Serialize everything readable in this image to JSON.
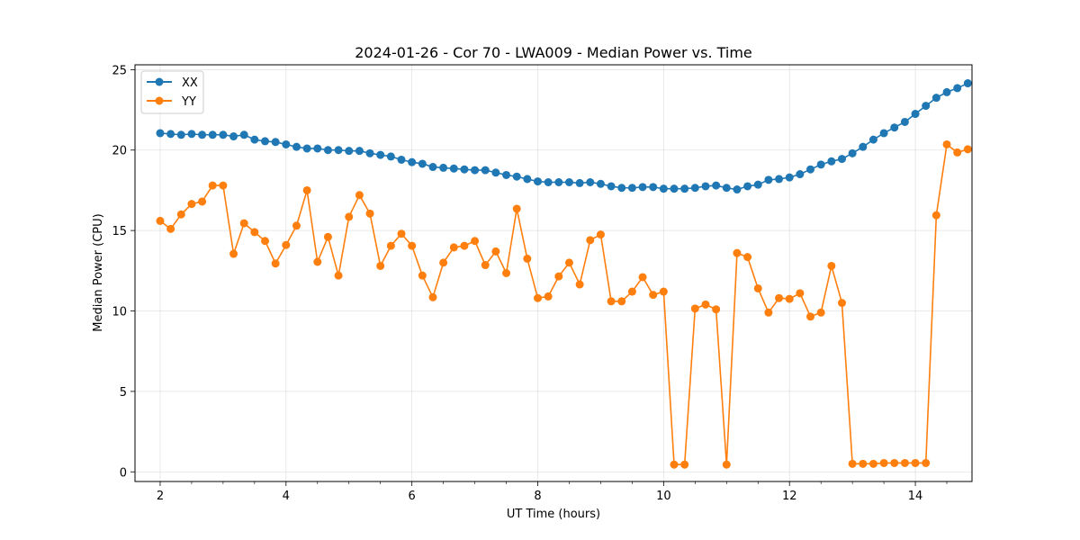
{
  "chart_data": {
    "type": "line",
    "title": "2024-01-26 - Cor 70 - LWA009 - Median Power vs. Time",
    "xlabel": "UT Time (hours)",
    "ylabel": "Median Power (CPU)",
    "xlim": [
      1.6,
      14.9
    ],
    "ylim": [
      -0.6,
      25.3
    ],
    "xticks": [
      2,
      4,
      6,
      8,
      10,
      12,
      14
    ],
    "yticks": [
      0,
      5,
      10,
      15,
      20,
      25
    ],
    "grid": true,
    "legend_position": "upper-left",
    "x": [
      2.0,
      2.1667,
      2.3333,
      2.5,
      2.6667,
      2.8333,
      3.0,
      3.1667,
      3.3333,
      3.5,
      3.6667,
      3.8333,
      4.0,
      4.1667,
      4.3333,
      4.5,
      4.6667,
      4.8333,
      5.0,
      5.1667,
      5.3333,
      5.5,
      5.6667,
      5.8333,
      6.0,
      6.1667,
      6.3333,
      6.5,
      6.6667,
      6.8333,
      7.0,
      7.1667,
      7.3333,
      7.5,
      7.6667,
      7.8333,
      8.0,
      8.1667,
      8.3333,
      8.5,
      8.6667,
      8.8333,
      9.0,
      9.1667,
      9.3333,
      9.5,
      9.6667,
      9.8333,
      10.0,
      10.1667,
      10.3333,
      10.5,
      10.6667,
      10.8333,
      11.0,
      11.1667,
      11.3333,
      11.5,
      11.6667,
      11.8333,
      12.0,
      12.1667,
      12.3333,
      12.5,
      12.6667,
      12.8333,
      13.0,
      13.1667,
      13.3333,
      13.5,
      13.6667,
      13.8333,
      14.0,
      14.1667,
      14.3333,
      14.5,
      14.6667,
      14.8333
    ],
    "series": [
      {
        "name": "XX",
        "color": "#1f77b4",
        "values": [
          21.05,
          21.0,
          20.95,
          21.0,
          20.95,
          20.95,
          20.95,
          20.85,
          20.95,
          20.65,
          20.55,
          20.5,
          20.35,
          20.2,
          20.1,
          20.1,
          20.0,
          20.0,
          19.95,
          19.95,
          19.8,
          19.7,
          19.6,
          19.4,
          19.25,
          19.15,
          18.95,
          18.9,
          18.85,
          18.8,
          18.75,
          18.75,
          18.6,
          18.45,
          18.35,
          18.2,
          18.05,
          18.0,
          18.0,
          18.0,
          17.95,
          18.0,
          17.9,
          17.75,
          17.65,
          17.65,
          17.7,
          17.7,
          17.6,
          17.6,
          17.6,
          17.65,
          17.75,
          17.8,
          17.65,
          17.55,
          17.75,
          17.85,
          18.15,
          18.2,
          18.3,
          18.5,
          18.8,
          19.1,
          19.3,
          19.45,
          19.8,
          20.2,
          20.65,
          21.05,
          21.4,
          21.75,
          22.25,
          22.75,
          23.25,
          23.6,
          23.85,
          24.15
        ]
      },
      {
        "name": "YY",
        "color": "#ff7f0e",
        "values": [
          15.6,
          15.1,
          16.0,
          16.65,
          16.8,
          17.8,
          17.8,
          13.55,
          15.45,
          14.9,
          14.35,
          12.95,
          14.1,
          15.3,
          17.5,
          13.05,
          14.6,
          12.2,
          15.85,
          17.2,
          16.05,
          12.8,
          14.05,
          14.8,
          14.05,
          12.2,
          10.85,
          13.0,
          13.95,
          14.05,
          14.35,
          12.85,
          13.7,
          12.35,
          16.35,
          13.25,
          10.8,
          10.9,
          12.15,
          13.0,
          11.65,
          14.4,
          14.75,
          10.6,
          10.6,
          11.2,
          12.1,
          11.0,
          11.2,
          0.45,
          0.45,
          10.15,
          10.4,
          10.1,
          0.45,
          13.6,
          13.35,
          11.4,
          9.9,
          10.8,
          10.75,
          11.1,
          9.65,
          9.9,
          12.8,
          10.5,
          0.5,
          0.5,
          0.5,
          0.55,
          0.55,
          0.55,
          0.55,
          0.55,
          15.95,
          20.35,
          19.85,
          20.05
        ]
      }
    ]
  }
}
